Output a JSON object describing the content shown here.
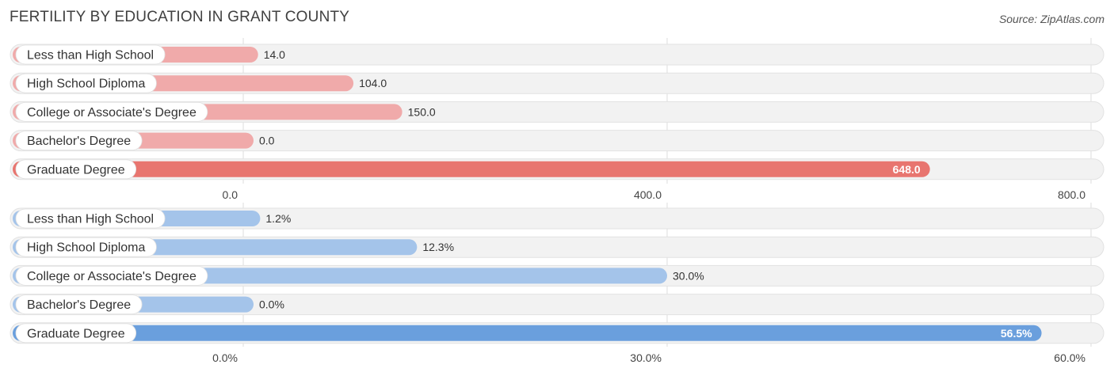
{
  "title": "FERTILITY BY EDUCATION IN GRANT COUNTY",
  "source": "Source: ZipAtlas.com",
  "chart_data": [
    {
      "type": "bar",
      "orientation": "horizontal",
      "categories": [
        "Less than High School",
        "High School Diploma",
        "College or Associate's Degree",
        "Bachelor's Degree",
        "Graduate Degree"
      ],
      "values": [
        14.0,
        104.0,
        150.0,
        0.0,
        648.0
      ],
      "value_labels": [
        "14.0",
        "104.0",
        "150.0",
        "0.0",
        "648.0"
      ],
      "xlim": [
        0,
        800
      ],
      "ticks": [
        0,
        400,
        800
      ],
      "tick_labels": [
        "0.0",
        "400.0",
        "800.0"
      ],
      "colors": {
        "bar": "#f0aaaa",
        "highlight": "#e8756f"
      },
      "grid": true
    },
    {
      "type": "bar",
      "orientation": "horizontal",
      "categories": [
        "Less than High School",
        "High School Diploma",
        "College or Associate's Degree",
        "Bachelor's Degree",
        "Graduate Degree"
      ],
      "values": [
        1.2,
        12.3,
        30.0,
        0.0,
        56.5
      ],
      "value_labels": [
        "1.2%",
        "12.3%",
        "30.0%",
        "0.0%",
        "56.5%"
      ],
      "xlim": [
        0,
        60
      ],
      "ticks": [
        0,
        30,
        60
      ],
      "tick_labels": [
        "0.0%",
        "30.0%",
        "60.0%"
      ],
      "colors": {
        "bar": "#a4c4ea",
        "highlight": "#6a9fdd"
      },
      "grid": true
    }
  ]
}
